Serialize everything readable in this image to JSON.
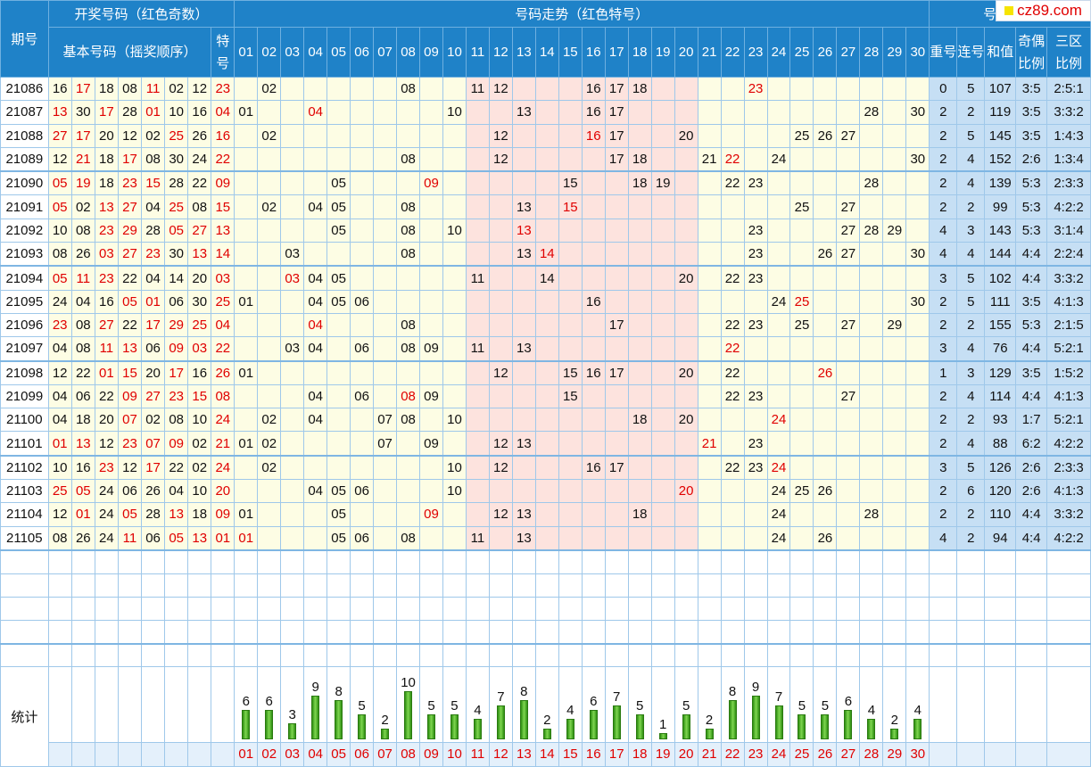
{
  "header": {
    "period": "期号",
    "winning": "开奖号码（红色奇数）",
    "basic": "基本号码（摇奖顺序）",
    "special": "特号",
    "trend": "号码走势（红色特号）",
    "analysis": "号码分析",
    "analysis_cols": [
      "重号",
      "连号",
      "和值",
      "奇偶比例",
      "三区比例"
    ]
  },
  "trend_numbers": [
    "01",
    "02",
    "03",
    "04",
    "05",
    "06",
    "07",
    "08",
    "09",
    "10",
    "11",
    "12",
    "13",
    "14",
    "15",
    "16",
    "17",
    "18",
    "19",
    "20",
    "21",
    "22",
    "23",
    "24",
    "25",
    "26",
    "27",
    "28",
    "29",
    "30"
  ],
  "colors": {
    "header_bg": "#1f82c8",
    "odd_red": "#e00000",
    "zone_yellow": "#fdfde4",
    "zone_pink": "#fde3de",
    "analysis_blue": "#c6dff4",
    "bar_green": "#3fa520"
  },
  "rows": [
    {
      "p": "21086",
      "b": [
        "16",
        "17",
        "18",
        "08",
        "11",
        "02",
        "12"
      ],
      "s": "23",
      "t": [
        "02",
        "08",
        "11",
        "12",
        "16",
        "17",
        "18",
        "23"
      ],
      "a": [
        "0",
        "5",
        "107",
        "3:5",
        "2:5:1"
      ]
    },
    {
      "p": "21087",
      "b": [
        "13",
        "30",
        "17",
        "28",
        "01",
        "10",
        "16"
      ],
      "s": "04",
      "t": [
        "01",
        "04",
        "10",
        "13",
        "16",
        "17",
        "28",
        "30"
      ],
      "a": [
        "2",
        "2",
        "119",
        "3:5",
        "3:3:2"
      ]
    },
    {
      "p": "21088",
      "b": [
        "27",
        "17",
        "20",
        "12",
        "02",
        "25",
        "26"
      ],
      "s": "16",
      "t": [
        "02",
        "12",
        "16",
        "17",
        "20",
        "25",
        "26",
        "27"
      ],
      "a": [
        "2",
        "5",
        "145",
        "3:5",
        "1:4:3"
      ]
    },
    {
      "p": "21089",
      "b": [
        "12",
        "21",
        "18",
        "17",
        "08",
        "30",
        "24"
      ],
      "s": "22",
      "t": [
        "08",
        "12",
        "17",
        "18",
        "21",
        "22",
        "24",
        "30"
      ],
      "a": [
        "2",
        "4",
        "152",
        "2:6",
        "1:3:4"
      ]
    },
    {
      "p": "21090",
      "b": [
        "05",
        "19",
        "18",
        "23",
        "15",
        "28",
        "22"
      ],
      "s": "09",
      "t": [
        "05",
        "09",
        "15",
        "18",
        "19",
        "22",
        "23",
        "28"
      ],
      "a": [
        "2",
        "4",
        "139",
        "5:3",
        "2:3:3"
      ]
    },
    {
      "p": "21091",
      "b": [
        "05",
        "02",
        "13",
        "27",
        "04",
        "25",
        "08"
      ],
      "s": "15",
      "t": [
        "02",
        "04",
        "05",
        "08",
        "13",
        "15",
        "25",
        "27"
      ],
      "a": [
        "2",
        "2",
        "99",
        "5:3",
        "4:2:2"
      ]
    },
    {
      "p": "21092",
      "b": [
        "10",
        "08",
        "23",
        "29",
        "28",
        "05",
        "27"
      ],
      "s": "13",
      "t": [
        "05",
        "08",
        "10",
        "13",
        "23",
        "27",
        "28",
        "29"
      ],
      "a": [
        "4",
        "3",
        "143",
        "5:3",
        "3:1:4"
      ]
    },
    {
      "p": "21093",
      "b": [
        "08",
        "26",
        "03",
        "27",
        "23",
        "30",
        "13"
      ],
      "s": "14",
      "t": [
        "03",
        "08",
        "13",
        "14",
        "23",
        "26",
        "27",
        "30"
      ],
      "a": [
        "4",
        "4",
        "144",
        "4:4",
        "2:2:4"
      ]
    },
    {
      "p": "21094",
      "b": [
        "05",
        "11",
        "23",
        "22",
        "04",
        "14",
        "20"
      ],
      "s": "03",
      "t": [
        "03",
        "04",
        "05",
        "11",
        "14",
        "20",
        "22",
        "23"
      ],
      "a": [
        "3",
        "5",
        "102",
        "4:4",
        "3:3:2"
      ]
    },
    {
      "p": "21095",
      "b": [
        "24",
        "04",
        "16",
        "05",
        "01",
        "06",
        "30"
      ],
      "s": "25",
      "t": [
        "01",
        "04",
        "05",
        "06",
        "16",
        "24",
        "25",
        "30"
      ],
      "a": [
        "2",
        "5",
        "111",
        "3:5",
        "4:1:3"
      ]
    },
    {
      "p": "21096",
      "b": [
        "23",
        "08",
        "27",
        "22",
        "17",
        "29",
        "25"
      ],
      "s": "04",
      "t": [
        "04",
        "08",
        "17",
        "22",
        "23",
        "25",
        "27",
        "29"
      ],
      "a": [
        "2",
        "2",
        "155",
        "5:3",
        "2:1:5"
      ]
    },
    {
      "p": "21097",
      "b": [
        "04",
        "08",
        "11",
        "13",
        "06",
        "09",
        "03"
      ],
      "s": "22",
      "t": [
        "03",
        "04",
        "06",
        "08",
        "09",
        "11",
        "13",
        "22"
      ],
      "a": [
        "3",
        "4",
        "76",
        "4:4",
        "5:2:1"
      ]
    },
    {
      "p": "21098",
      "b": [
        "12",
        "22",
        "01",
        "15",
        "20",
        "17",
        "16"
      ],
      "s": "26",
      "t": [
        "01",
        "12",
        "15",
        "16",
        "17",
        "20",
        "22",
        "26"
      ],
      "a": [
        "1",
        "3",
        "129",
        "3:5",
        "1:5:2"
      ]
    },
    {
      "p": "21099",
      "b": [
        "04",
        "06",
        "22",
        "09",
        "27",
        "23",
        "15"
      ],
      "s": "08",
      "t": [
        "04",
        "06",
        "08",
        "09",
        "15",
        "22",
        "23",
        "27"
      ],
      "a": [
        "2",
        "4",
        "114",
        "4:4",
        "4:1:3"
      ]
    },
    {
      "p": "21100",
      "b": [
        "04",
        "18",
        "20",
        "07",
        "02",
        "08",
        "10"
      ],
      "s": "24",
      "t": [
        "02",
        "04",
        "07",
        "08",
        "10",
        "18",
        "20",
        "24"
      ],
      "a": [
        "2",
        "2",
        "93",
        "1:7",
        "5:2:1"
      ]
    },
    {
      "p": "21101",
      "b": [
        "01",
        "13",
        "12",
        "23",
        "07",
        "09",
        "02"
      ],
      "s": "21",
      "t": [
        "01",
        "02",
        "07",
        "09",
        "12",
        "13",
        "21",
        "23"
      ],
      "a": [
        "2",
        "4",
        "88",
        "6:2",
        "4:2:2"
      ]
    },
    {
      "p": "21102",
      "b": [
        "10",
        "16",
        "23",
        "12",
        "17",
        "22",
        "02"
      ],
      "s": "24",
      "t": [
        "02",
        "10",
        "12",
        "16",
        "17",
        "22",
        "23",
        "24"
      ],
      "a": [
        "3",
        "5",
        "126",
        "2:6",
        "2:3:3"
      ]
    },
    {
      "p": "21103",
      "b": [
        "25",
        "05",
        "24",
        "06",
        "26",
        "04",
        "10"
      ],
      "s": "20",
      "t": [
        "04",
        "05",
        "06",
        "10",
        "20",
        "24",
        "25",
        "26"
      ],
      "a": [
        "2",
        "6",
        "120",
        "2:6",
        "4:1:3"
      ]
    },
    {
      "p": "21104",
      "b": [
        "12",
        "01",
        "24",
        "05",
        "28",
        "13",
        "18"
      ],
      "s": "09",
      "t": [
        "01",
        "05",
        "09",
        "12",
        "13",
        "18",
        "24",
        "28"
      ],
      "a": [
        "2",
        "2",
        "110",
        "4:4",
        "3:3:2"
      ]
    },
    {
      "p": "21105",
      "b": [
        "08",
        "26",
        "24",
        "11",
        "06",
        "05",
        "13"
      ],
      "s": "01",
      "t": [
        "01",
        "05",
        "06",
        "08",
        "11",
        "13",
        "24",
        "26"
      ],
      "a": [
        "4",
        "2",
        "94",
        "4:4",
        "4:2:2"
      ]
    }
  ],
  "stats": {
    "label": "统计",
    "counts": [
      6,
      6,
      3,
      9,
      8,
      5,
      2,
      10,
      5,
      5,
      4,
      7,
      8,
      2,
      4,
      6,
      7,
      5,
      1,
      5,
      2,
      8,
      9,
      7,
      5,
      5,
      6,
      4,
      2,
      4
    ]
  },
  "logo": {
    "text": "cz89.com"
  }
}
